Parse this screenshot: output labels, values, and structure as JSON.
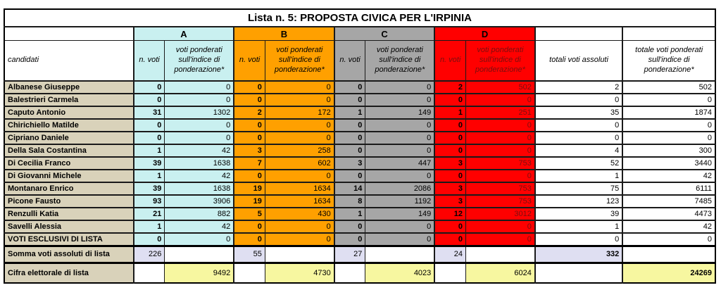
{
  "title": "Lista n. 5: PROPOSTA CIVICA PER L'IRPINIA",
  "colors": {
    "group_a": "#c9f0f0",
    "group_b": "#ffa000",
    "group_c": "#a6a6a6",
    "group_d": "#ff0000",
    "candidate_name_bg": "#d9d2ba",
    "somma_bg": "#dfdff2",
    "cifra_bg": "#f7f7a0",
    "d_text": "#7a0f0f"
  },
  "groups": [
    {
      "label": "A"
    },
    {
      "label": "B"
    },
    {
      "label": "C"
    },
    {
      "label": "D"
    }
  ],
  "headers": {
    "candidates": "candidati",
    "n_voti": "n. voti",
    "ponderati": "voti ponderati sull'indice di ponderazione*",
    "totali_assoluti": "totali voti assoluti",
    "totale_ponderati": "totale voti ponderati sull'indice di ponderazione*"
  },
  "rows": [
    {
      "name": "Albanese Giuseppe",
      "by_group": [
        [
          0,
          0
        ],
        [
          0,
          0
        ],
        [
          0,
          0
        ],
        [
          2,
          502
        ]
      ],
      "totale_assoluti": 2,
      "totale_ponderati": 502
    },
    {
      "name": "Balestrieri Carmela",
      "by_group": [
        [
          0,
          0
        ],
        [
          0,
          0
        ],
        [
          0,
          0
        ],
        [
          0,
          0
        ]
      ],
      "totale_assoluti": 0,
      "totale_ponderati": 0
    },
    {
      "name": "Caputo Antonio",
      "by_group": [
        [
          31,
          1302
        ],
        [
          2,
          172
        ],
        [
          1,
          149
        ],
        [
          1,
          251
        ]
      ],
      "totale_assoluti": 35,
      "totale_ponderati": 1874
    },
    {
      "name": "Chirichiello Matilde",
      "by_group": [
        [
          0,
          0
        ],
        [
          0,
          0
        ],
        [
          0,
          0
        ],
        [
          0,
          0
        ]
      ],
      "totale_assoluti": 0,
      "totale_ponderati": 0
    },
    {
      "name": "Cipriano Daniele",
      "by_group": [
        [
          0,
          0
        ],
        [
          0,
          0
        ],
        [
          0,
          0
        ],
        [
          0,
          0
        ]
      ],
      "totale_assoluti": 0,
      "totale_ponderati": 0
    },
    {
      "name": "Della Sala Costantina",
      "by_group": [
        [
          1,
          42
        ],
        [
          3,
          258
        ],
        [
          0,
          0
        ],
        [
          0,
          0
        ]
      ],
      "totale_assoluti": 4,
      "totale_ponderati": 300
    },
    {
      "name": "Di Cecilia Franco",
      "by_group": [
        [
          39,
          1638
        ],
        [
          7,
          602
        ],
        [
          3,
          447
        ],
        [
          3,
          753
        ]
      ],
      "totale_assoluti": 52,
      "totale_ponderati": 3440
    },
    {
      "name": "Di Giovanni Michele",
      "by_group": [
        [
          1,
          42
        ],
        [
          0,
          0
        ],
        [
          0,
          0
        ],
        [
          0,
          0
        ]
      ],
      "totale_assoluti": 1,
      "totale_ponderati": 42
    },
    {
      "name": "Montanaro Enrico",
      "by_group": [
        [
          39,
          1638
        ],
        [
          19,
          1634
        ],
        [
          14,
          2086
        ],
        [
          3,
          753
        ]
      ],
      "totale_assoluti": 75,
      "totale_ponderati": 6111
    },
    {
      "name": "Picone Fausto",
      "by_group": [
        [
          93,
          3906
        ],
        [
          19,
          1634
        ],
        [
          8,
          1192
        ],
        [
          3,
          753
        ]
      ],
      "totale_assoluti": 123,
      "totale_ponderati": 7485
    },
    {
      "name": "Renzulli Katia",
      "by_group": [
        [
          21,
          882
        ],
        [
          5,
          430
        ],
        [
          1,
          149
        ],
        [
          12,
          3012
        ]
      ],
      "totale_assoluti": 39,
      "totale_ponderati": 4473
    },
    {
      "name": "Savelli Alessia",
      "by_group": [
        [
          1,
          42
        ],
        [
          0,
          0
        ],
        [
          0,
          0
        ],
        [
          0,
          0
        ]
      ],
      "totale_assoluti": 1,
      "totale_ponderati": 42
    },
    {
      "name": "VOTI ESCLUSIVI DI LISTA",
      "by_group": [
        [
          0,
          0
        ],
        [
          0,
          0
        ],
        [
          0,
          0
        ],
        [
          0,
          0
        ]
      ],
      "totale_assoluti": 0,
      "totale_ponderati": 0
    }
  ],
  "summary": {
    "somma": {
      "label": "Somma voti assoluti di lista",
      "values": [
        226,
        55,
        27,
        24
      ],
      "total": 332
    },
    "cifra": {
      "label": "Cifra elettorale di lista",
      "values": [
        9492,
        4730,
        4023,
        6024
      ],
      "total": 24269
    }
  }
}
